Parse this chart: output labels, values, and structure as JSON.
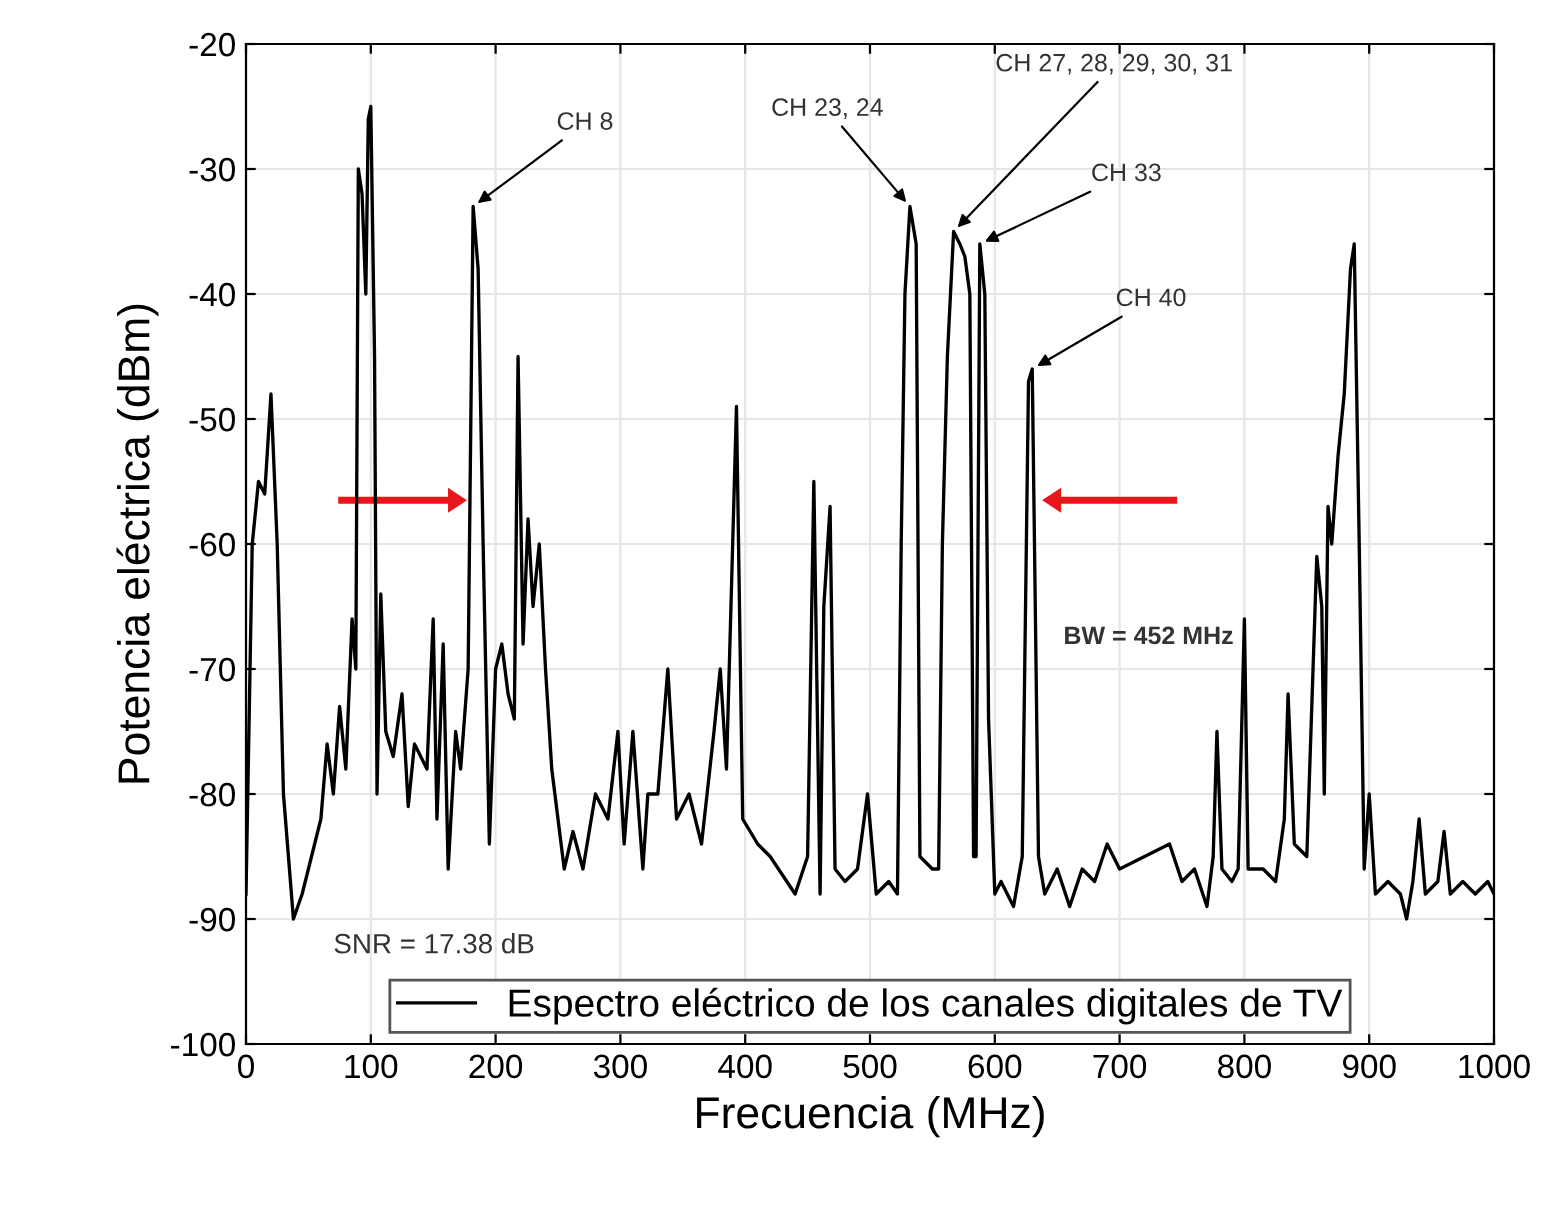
{
  "chart_data": {
    "type": "line",
    "xlabel": "Frecuencia (MHz)",
    "ylabel": "Potencia eléctrica (dBm)",
    "xlim": [
      0,
      1000
    ],
    "ylim": [
      -100,
      -20
    ],
    "xticks": [
      0,
      100,
      200,
      300,
      400,
      500,
      600,
      700,
      800,
      900,
      1000
    ],
    "yticks": [
      -100,
      -90,
      -80,
      -70,
      -60,
      -50,
      -40,
      -30,
      -20
    ],
    "grid": true,
    "legend": "bottom",
    "marker": "none",
    "line_style": "solid",
    "series": [
      {
        "name": "Espectro eléctrico de los canales digitales de TV",
        "color": "#000000",
        "x": [
          0,
          5,
          10,
          15,
          20,
          25,
          30,
          38,
          45,
          50,
          60,
          65,
          70,
          75,
          80,
          85,
          88,
          90,
          93,
          96,
          98,
          100,
          103,
          105,
          108,
          112,
          118,
          125,
          130,
          135,
          145,
          150,
          153,
          158,
          162,
          168,
          172,
          178,
          182,
          186,
          190,
          195,
          200,
          205,
          210,
          215,
          218,
          222,
          226,
          230,
          235,
          240,
          245,
          255,
          262,
          270,
          280,
          290,
          298,
          303,
          310,
          318,
          322,
          330,
          338,
          345,
          355,
          365,
          375,
          380,
          385,
          393,
          398,
          410,
          420,
          440,
          450,
          455,
          460,
          463,
          468,
          472,
          480,
          490,
          498,
          505,
          515,
          522,
          525,
          528,
          532,
          537,
          540,
          550,
          555,
          558,
          562,
          567,
          572,
          576,
          580,
          583,
          585,
          588,
          592,
          595,
          600,
          605,
          615,
          622,
          627,
          630,
          635,
          640,
          650,
          660,
          670,
          680,
          690,
          700,
          720,
          740,
          750,
          760,
          770,
          775,
          778,
          782,
          790,
          795,
          800,
          803,
          815,
          825,
          832,
          835,
          840,
          850,
          855,
          858,
          862,
          864,
          867,
          870,
          875,
          880,
          885,
          888,
          892,
          896,
          900,
          905,
          915,
          925,
          930,
          935,
          940,
          945,
          955,
          960,
          965,
          975,
          985,
          995,
          1000
        ],
        "values": [
          -88,
          -60,
          -55,
          -56,
          -48,
          -60,
          -80,
          -90,
          -88,
          -86,
          -82,
          -76,
          -80,
          -73,
          -78,
          -66,
          -70,
          -30,
          -32,
          -40,
          -26,
          -25,
          -45,
          -80,
          -64,
          -75,
          -77,
          -72,
          -81,
          -76,
          -78,
          -66,
          -82,
          -68,
          -86,
          -75,
          -78,
          -70,
          -33,
          -38,
          -60,
          -84,
          -70,
          -68,
          -72,
          -74,
          -45,
          -68,
          -58,
          -65,
          -60,
          -70,
          -78,
          -86,
          -83,
          -86,
          -80,
          -82,
          -75,
          -84,
          -75,
          -86,
          -80,
          -80,
          -70,
          -82,
          -80,
          -84,
          -75,
          -70,
          -78,
          -49,
          -82,
          -84,
          -85,
          -88,
          -85,
          -55,
          -88,
          -65,
          -57,
          -86,
          -87,
          -86,
          -80,
          -88,
          -87,
          -88,
          -60,
          -40,
          -33,
          -36,
          -85,
          -86,
          -86,
          -60,
          -45,
          -35,
          -36,
          -37,
          -40,
          -85,
          -85,
          -36,
          -40,
          -74,
          -88,
          -87,
          -89,
          -85,
          -47,
          -46,
          -85,
          -88,
          -86,
          -89,
          -86,
          -87,
          -84,
          -86,
          -85,
          -84,
          -87,
          -86,
          -89,
          -85,
          -75,
          -86,
          -87,
          -86,
          -66,
          -86,
          -86,
          -87,
          -82,
          -72,
          -84,
          -85,
          -70,
          -61,
          -65,
          -80,
          -57,
          -60,
          -53,
          -48,
          -38,
          -36,
          -60,
          -86,
          -80,
          -88,
          -87,
          -88,
          -90,
          -87,
          -82,
          -88,
          -87,
          -83,
          -88,
          -87,
          -88,
          -87,
          -88
        ]
      }
    ],
    "annotations": [
      {
        "text": "CH 8",
        "x": 182,
        "y": -33
      },
      {
        "text": "CH 23, 24",
        "x": 532,
        "y": -33
      },
      {
        "text": "CH 27, 28, 29, 30, 31",
        "x": 567,
        "y": -35
      },
      {
        "text": "CH 33",
        "x": 588,
        "y": -36
      },
      {
        "text": "CH 40",
        "x": 630,
        "y": -46
      },
      "SNR = 17.38 dB",
      "BW = 452 MHz"
    ]
  }
}
